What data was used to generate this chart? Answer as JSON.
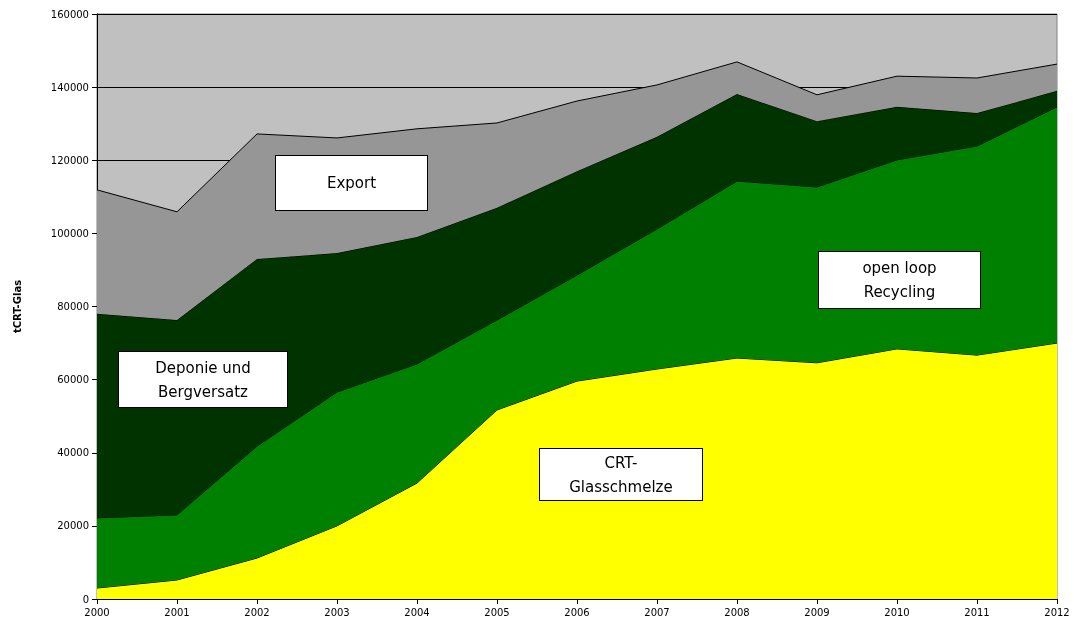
{
  "chart_data": {
    "type": "area",
    "stacked": true,
    "ylabel": "tCRT-Glas",
    "categories": [
      "2000",
      "2001",
      "2002",
      "2003",
      "2004",
      "2005",
      "2006",
      "2007",
      "2008",
      "2009",
      "2010",
      "2011",
      "2012"
    ],
    "series": [
      {
        "color": "#ffff00",
        "values": [
          3000,
          5200,
          11200,
          20000,
          31700,
          51700,
          59600,
          62900,
          65900,
          64600,
          68400,
          66700,
          70000
        ]
      },
      {
        "color": "#008000",
        "values": [
          19200,
          17800,
          30600,
          36600,
          32600,
          24600,
          29000,
          38300,
          48400,
          48100,
          51700,
          57200,
          64600
        ]
      },
      {
        "color": "#003300",
        "values": [
          55800,
          53300,
          51200,
          38000,
          34700,
          30700,
          28400,
          25200,
          23800,
          18000,
          14500,
          9000,
          4400
        ]
      },
      {
        "color": "#969696",
        "values": [
          33900,
          29600,
          34200,
          31500,
          29600,
          23200,
          19200,
          14200,
          8800,
          7200,
          8400,
          9600,
          7300
        ]
      }
    ],
    "ylim": [
      0,
      160000
    ],
    "yticks": [
      0,
      20000,
      40000,
      60000,
      80000,
      100000,
      120000,
      140000,
      160000
    ],
    "grid": "y",
    "annotations": [
      "Export",
      "Deponie und\nBergversatz",
      "CRT-\nGlasschmelze",
      "open loop\nRecycling"
    ]
  }
}
